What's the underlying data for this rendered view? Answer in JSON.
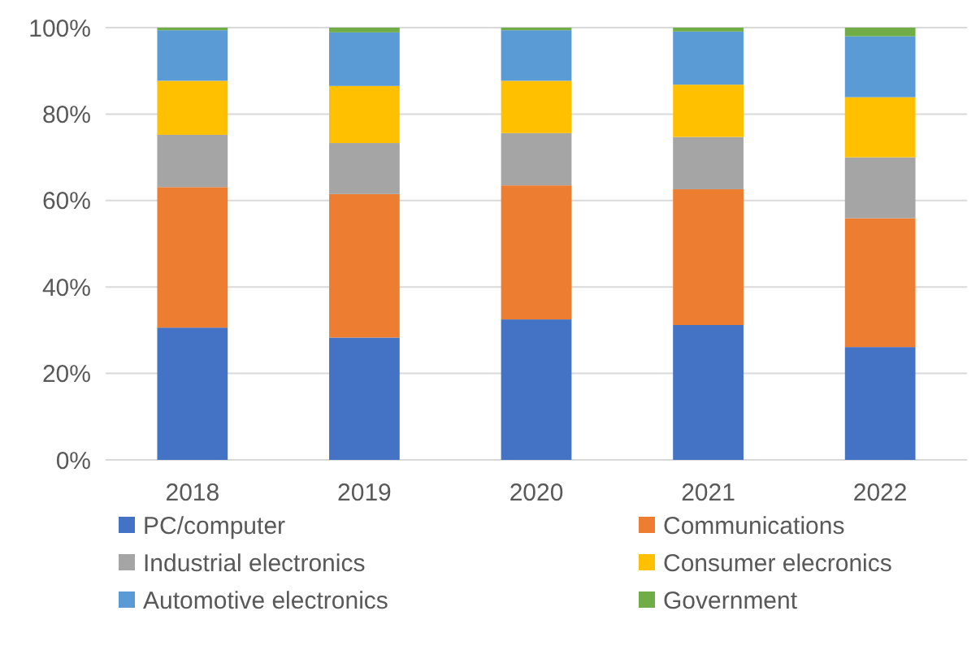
{
  "chart_data": {
    "type": "bar",
    "stacked": true,
    "categories": [
      "2018",
      "2019",
      "2020",
      "2021",
      "2022"
    ],
    "series": [
      {
        "name": "PC/computer",
        "color": "#4472c4",
        "values": [
          30.6,
          28.3,
          32.5,
          31.2,
          26.1
        ]
      },
      {
        "name": "Communications",
        "color": "#ed7d31",
        "values": [
          32.5,
          33.2,
          31.0,
          31.4,
          29.8
        ]
      },
      {
        "name": "Industrial electronics",
        "color": "#a5a5a5",
        "values": [
          12.1,
          11.8,
          12.1,
          12.1,
          14.1
        ]
      },
      {
        "name": "Consumer elecronics",
        "color": "#ffc000",
        "values": [
          12.5,
          13.2,
          12.1,
          12.1,
          13.9
        ]
      },
      {
        "name": "Automotive electronics",
        "color": "#5b9bd5",
        "values": [
          11.7,
          12.4,
          11.7,
          12.3,
          14.1
        ]
      },
      {
        "name": "Government",
        "color": "#70ad47",
        "values": [
          0.6,
          1.1,
          0.6,
          0.9,
          2.0
        ]
      }
    ],
    "ylim": [
      0,
      100
    ],
    "yticks": [
      {
        "value": 0,
        "label": "0%"
      },
      {
        "value": 20,
        "label": "20%"
      },
      {
        "value": 40,
        "label": "40%"
      },
      {
        "value": 60,
        "label": "60%"
      },
      {
        "value": 80,
        "label": "80%"
      },
      {
        "value": 100,
        "label": "100%"
      }
    ],
    "grid": "y",
    "legend": "bottom"
  }
}
